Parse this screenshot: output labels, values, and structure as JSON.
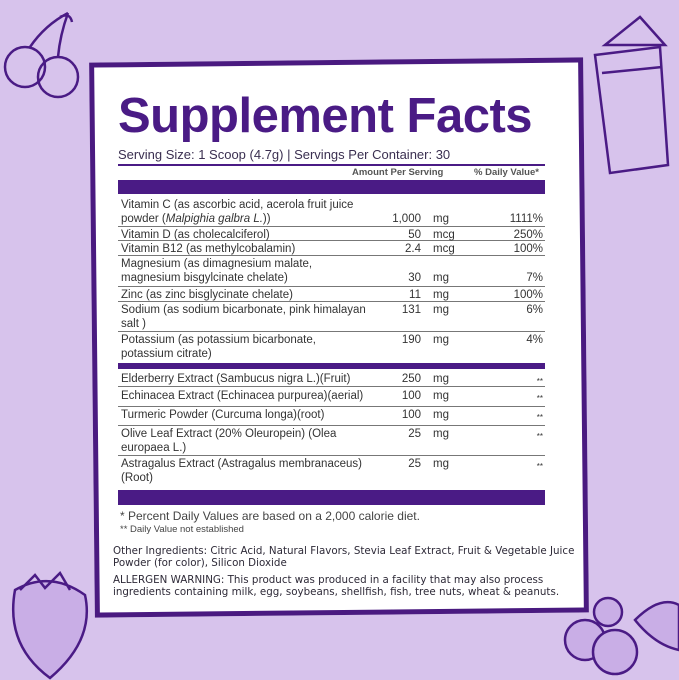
{
  "title": "Supplement Facts",
  "serving": "Serving Size: 1 Scoop (4.7g) | Servings Per Container: 30",
  "headers": {
    "amount": "Amount Per Serving",
    "dv": "% Daily Value*"
  },
  "rows": [
    {
      "name": "Vitamin C (as ascorbic acid, acerola fruit juice powder (",
      "italic": "Malpighia galbra L.",
      "name_end": "))",
      "amount": "1,000",
      "unit": "mg",
      "dv": "1111%"
    },
    {
      "name": "Vitamin D (as cholecalciferol)",
      "amount": "50",
      "unit": "mcg",
      "dv": "250%"
    },
    {
      "name": "Vitamin B12 (as methylcobalamin)",
      "amount": "2.4",
      "unit": "mcg",
      "dv": "100%"
    },
    {
      "name": "Magnesium (as dimagnesium malate, magnesium bisgylcinate chelate)",
      "amount": "30",
      "unit": "mg",
      "dv": "7%"
    },
    {
      "name": "Zinc (as zinc bisglycinate chelate)",
      "amount": "11",
      "unit": "mg",
      "dv": "100%"
    },
    {
      "name": "Sodium (as sodium bicarbonate, pink himalayan salt )",
      "amount": "131",
      "unit": "mg",
      "dv": "6%"
    },
    {
      "name": "Potassium (as potassium bicarbonate, potassium citrate)",
      "amount": "190",
      "unit": "mg",
      "dv": "4%"
    },
    {
      "name": "Elderberry Extract (Sambucus nigra L.)(Fruit)",
      "amount": "250",
      "unit": "mg",
      "dv": "**"
    },
    {
      "name": "Echinacea Extract (Echinacea purpurea)(aerial)",
      "amount": "100",
      "unit": "mg",
      "dv": "**"
    },
    {
      "name": "Turmeric Powder (Curcuma longa)(root)",
      "amount": "100",
      "unit": "mg",
      "dv": "**"
    },
    {
      "name": "Olive Leaf Extract (20% Oleuropein) (Olea europaea L.)",
      "amount": "25",
      "unit": "mg",
      "dv": "**"
    },
    {
      "name": "Astragalus Extract (Astragalus membranaceus)(Root)",
      "amount": "25",
      "unit": "mg",
      "dv": "**"
    }
  ],
  "footnote1": "* Percent Daily Values are based on a 2,000 calorie diet.",
  "footnote2": "** Daily Value not established",
  "other": "Other Ingredients: Citric Acid, Natural Flavors, Stevia Leaf Extract, Fruit & Vegetable Juice Powder (for color), Silicon Dioxide",
  "allergen": "ALLERGEN WARNING: This product was produced in a facility that may also process ingredients containing milk, egg, soybeans, shellfish, fish, tree nuts, wheat & peanuts.",
  "colors": {
    "accent": "#4a1b85",
    "background": "#d7c3ec"
  }
}
